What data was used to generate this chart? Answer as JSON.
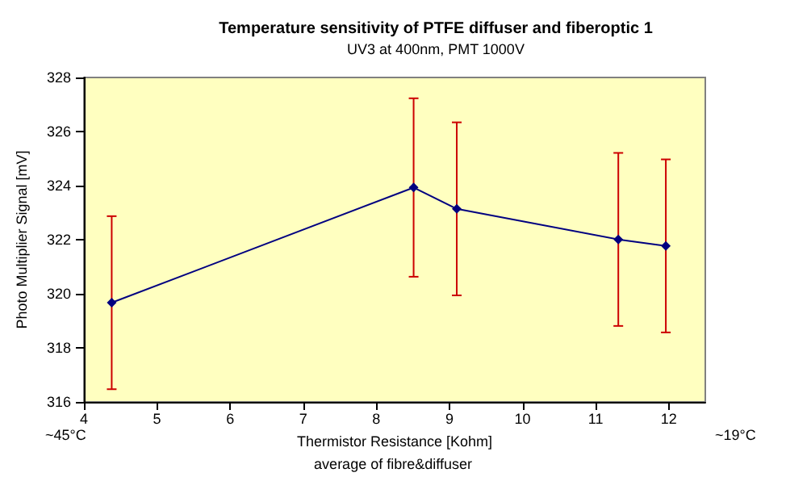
{
  "chart_data": {
    "type": "line",
    "title": "Temperature sensitivity of PTFE diffuser and fiberoptic 1",
    "subtitle": "UV3 at 400nm, PMT 1000V",
    "xlabel": "Thermistor Resistance [Kohm]",
    "ylabel": "Photo Multiplier Signal [mV]",
    "annotations": [
      "average of fibre&diffuser",
      "~45°C",
      "~19°C"
    ],
    "x": [
      4.38,
      8.51,
      9.1,
      11.31,
      11.96
    ],
    "series": [
      {
        "color": "#000080",
        "values": [
          319.67,
          323.93,
          323.14,
          322.01,
          321.77
        ],
        "errors": [
          3.2,
          3.3,
          3.2,
          3.2,
          3.2
        ]
      }
    ],
    "xlim": [
      4,
      12.5
    ],
    "xticks": [
      4,
      5,
      6,
      7,
      8,
      9,
      10,
      11,
      12
    ],
    "ylim": [
      316,
      328
    ],
    "yticks": [
      316,
      318,
      320,
      322,
      324,
      326,
      328
    ],
    "grid": false,
    "marker": "diamond",
    "line_style": "solid"
  }
}
